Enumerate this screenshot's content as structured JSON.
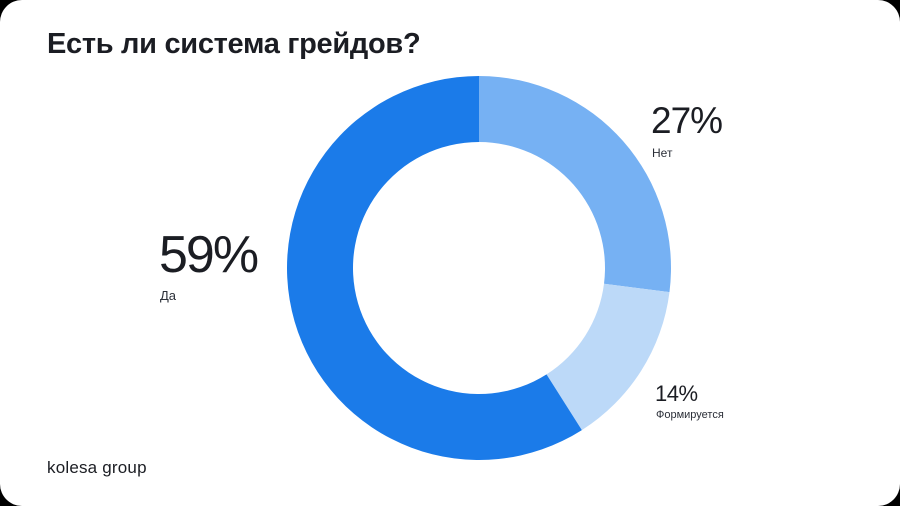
{
  "chart_data": {
    "type": "pie",
    "title": "Есть ли система грейдов?",
    "categories": [
      "Да",
      "Нет",
      "Формируется"
    ],
    "values": [
      59,
      27,
      14
    ],
    "value_labels": [
      "59%",
      "27%",
      "14%"
    ],
    "colors": [
      "#1b7be9",
      "#76b1f3",
      "#bcd9f8"
    ],
    "donut": true
  },
  "branding": {
    "logo_text": "kolesa group"
  }
}
